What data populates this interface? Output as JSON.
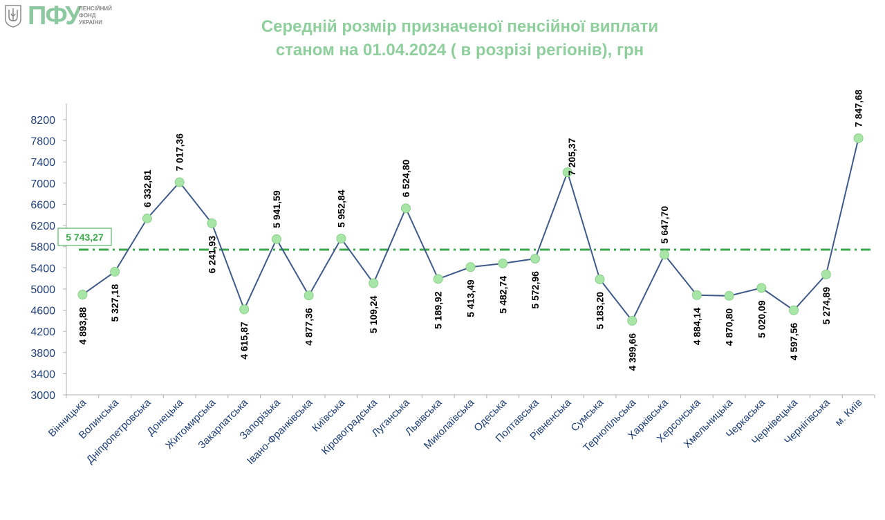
{
  "logo": {
    "name": "ПФУ",
    "subtitle": [
      "ПЕНСІЙНИЙ",
      "ФОНД",
      "УКРАЇНИ"
    ]
  },
  "colors": {
    "line": "#3f5a8a",
    "marker": "#a8e6a8",
    "marker_edge": "#8ccf8c",
    "average": "#3aa84a",
    "title": "#8fcf9d",
    "axis_text": "#1f3f75"
  },
  "chart_data": {
    "type": "line",
    "title": [
      "Середній розмір призначеної пенсійної виплати",
      "станом на 01.04.2024 ( в розрізі регіонів), грн"
    ],
    "ylim": [
      3000,
      8200
    ],
    "yticks": [
      3000,
      3400,
      3800,
      4200,
      4600,
      5000,
      5400,
      5800,
      6200,
      6600,
      7000,
      7400,
      7800,
      8200
    ],
    "average": 5743.27,
    "average_label": "5 743,27",
    "categories": [
      "Вінницька",
      "Волинська",
      "Дніпропетровська",
      "Донецька",
      "Житомирська",
      "Закарпатська",
      "Запорізька",
      "Івано-Франківська",
      "Київська",
      "Кіровоградська",
      "Луганська",
      "Львівська",
      "Миколаївська",
      "Одеська",
      "Полтавська",
      "Рівненська",
      "Сумська",
      "Тернопільська",
      "Харківська",
      "Херсонська",
      "Хмельницька",
      "Черкаська",
      "Чернівецька",
      "Чернігівська",
      "м. Київ"
    ],
    "values": [
      4893.88,
      5327.18,
      6332.81,
      7017.36,
      6241.93,
      4615.87,
      5941.59,
      4877.36,
      5952.84,
      5109.24,
      6524.8,
      5189.92,
      5413.49,
      5482.74,
      5572.96,
      7205.37,
      5183.2,
      4399.66,
      5647.7,
      4884.14,
      4870.8,
      5020.09,
      4597.56,
      5274.89,
      7847.68
    ],
    "labels": [
      "4 893,88",
      "5 327,18",
      "6 332,81",
      "7 017,36",
      "6 241,93",
      "4 615,87",
      "5 941,59",
      "4 877,36",
      "5 952,84",
      "5 109,24",
      "6 524,80",
      "5 189,92",
      "5 413,49",
      "5 482,74",
      "5 572,96",
      "7 205,37",
      "5 183,20",
      "4 399,66",
      "5 647,70",
      "4 884,14",
      "4 870,80",
      "5 020,09",
      "4 597,56",
      "5 274,89",
      "7 847,68"
    ],
    "label_positions": [
      "below",
      "below",
      "above",
      "above",
      "below",
      "below",
      "above",
      "below",
      "above",
      "below",
      "above",
      "below",
      "below",
      "below",
      "below",
      "right",
      "below",
      "below",
      "above",
      "below",
      "below",
      "below",
      "below",
      "below",
      "above"
    ]
  }
}
